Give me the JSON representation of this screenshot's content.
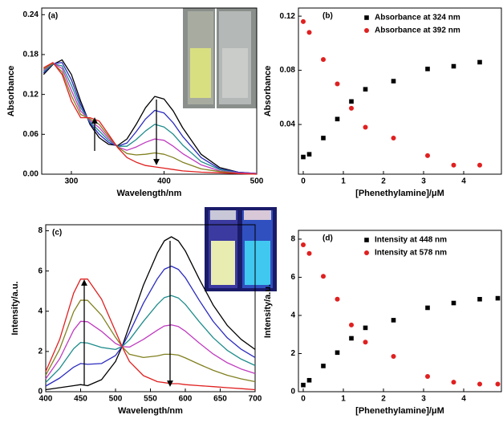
{
  "chart_data": [
    {
      "type": "line",
      "panel_label": "(a)",
      "x_label": "Wavelength/nm",
      "y_label": "Absorbance",
      "xlim": [
        268,
        500
      ],
      "ylim": [
        0,
        0.25
      ],
      "xticks": [
        300,
        400,
        500
      ],
      "yticks": [
        {
          "value": 0,
          "label": "0.00"
        },
        0.06,
        0.12,
        0.18,
        0.24
      ],
      "x": [
        270,
        280,
        290,
        300,
        310,
        320,
        330,
        340,
        350,
        360,
        370,
        380,
        390,
        400,
        410,
        420,
        440,
        460,
        480,
        500
      ],
      "series": [
        {
          "color": "#000000",
          "values": [
            0.15,
            0.165,
            0.172,
            0.15,
            0.11,
            0.075,
            0.055,
            0.045,
            0.043,
            0.053,
            0.075,
            0.1,
            0.117,
            0.113,
            0.095,
            0.07,
            0.03,
            0.01,
            0.003,
            0.001
          ]
        },
        {
          "color": "#2b2bbf",
          "values": [
            0.152,
            0.166,
            0.168,
            0.142,
            0.105,
            0.077,
            0.06,
            0.048,
            0.042,
            0.047,
            0.064,
            0.083,
            0.096,
            0.092,
            0.077,
            0.057,
            0.025,
            0.008,
            0.003,
            0.001
          ]
        },
        {
          "color": "#1f8c8c",
          "values": [
            0.154,
            0.166,
            0.163,
            0.134,
            0.1,
            0.079,
            0.065,
            0.051,
            0.042,
            0.042,
            0.052,
            0.065,
            0.075,
            0.071,
            0.06,
            0.044,
            0.019,
            0.007,
            0.002,
            0.001
          ]
        },
        {
          "color": "#c03cc0",
          "values": [
            0.156,
            0.167,
            0.159,
            0.126,
            0.095,
            0.081,
            0.07,
            0.054,
            0.041,
            0.036,
            0.041,
            0.048,
            0.053,
            0.051,
            0.042,
            0.031,
            0.014,
            0.005,
            0.002,
            0.001
          ]
        },
        {
          "color": "#808020",
          "values": [
            0.158,
            0.167,
            0.154,
            0.118,
            0.09,
            0.083,
            0.075,
            0.057,
            0.041,
            0.031,
            0.029,
            0.03,
            0.032,
            0.03,
            0.025,
            0.018,
            0.008,
            0.004,
            0.001,
            0.0
          ]
        },
        {
          "color": "#e02020",
          "values": [
            0.16,
            0.168,
            0.15,
            0.11,
            0.085,
            0.085,
            0.08,
            0.06,
            0.04,
            0.025,
            0.018,
            0.013,
            0.011,
            0.009,
            0.007,
            0.005,
            0.003,
            0.002,
            0.001,
            0.0
          ]
        }
      ]
    },
    {
      "type": "scatter",
      "panel_label": "(b)",
      "x_label": "[Phenethylamine]/μM",
      "y_label": "Absorbance",
      "xlim": [
        -0.12,
        4.94
      ],
      "ylim": [
        0.0033,
        0.126
      ],
      "xticks": [
        0,
        1,
        2,
        3,
        4
      ],
      "yticks": [
        0.04,
        0.08,
        0.12
      ],
      "legend": "upper right",
      "x": [
        0,
        0.15,
        0.5,
        0.85,
        1.2,
        1.55,
        2.25,
        3.1,
        3.75,
        4.4
      ],
      "series": [
        {
          "name": "Absorbance at 324 nm",
          "color": "#000000",
          "marker": "square",
          "values": [
            0.016,
            0.018,
            0.03,
            0.044,
            0.057,
            0.066,
            0.072,
            0.081,
            0.083,
            0.086
          ]
        },
        {
          "name": "Absorbance at 392 nm",
          "color": "#e02020",
          "marker": "circle",
          "values": [
            0.116,
            0.108,
            0.088,
            0.07,
            0.052,
            0.038,
            0.03,
            0.017,
            0.01,
            0.01
          ]
        }
      ]
    },
    {
      "type": "line",
      "panel_label": "(c)",
      "x_label": "Wavelength/nm",
      "y_label": "Intensity/a.u.",
      "xlim": [
        400,
        700
      ],
      "ylim": [
        0,
        8.3
      ],
      "xticks": [
        400,
        450,
        500,
        550,
        600,
        650,
        700
      ],
      "yticks": [
        0,
        2,
        4,
        6,
        8
      ],
      "x": [
        400,
        420,
        440,
        450,
        460,
        480,
        500,
        510,
        520,
        540,
        560,
        570,
        580,
        590,
        600,
        620,
        640,
        660,
        680,
        700
      ],
      "series": [
        {
          "color": "#000000",
          "values": [
            0.1,
            0.2,
            0.3,
            0.35,
            0.3,
            0.6,
            1.5,
            2.3,
            3.3,
            5.3,
            6.9,
            7.5,
            7.7,
            7.5,
            7.0,
            5.6,
            4.3,
            3.3,
            2.6,
            2.1
          ]
        },
        {
          "color": "#2b2bbf",
          "values": [
            0.28,
            0.68,
            1.22,
            1.4,
            1.36,
            1.4,
            1.8,
            2.28,
            2.94,
            4.4,
            5.62,
            6.09,
            6.24,
            6.08,
            5.67,
            4.54,
            3.49,
            2.68,
            2.11,
            1.7
          ]
        },
        {
          "color": "#1f8c8c",
          "values": [
            0.46,
            1.16,
            2.14,
            2.45,
            2.42,
            2.2,
            2.1,
            2.26,
            2.58,
            3.5,
            4.34,
            4.68,
            4.78,
            4.66,
            4.34,
            3.48,
            2.68,
            2.06,
            1.62,
            1.3
          ]
        },
        {
          "color": "#c03cc0",
          "values": [
            0.64,
            1.64,
            3.06,
            3.5,
            3.48,
            3.0,
            2.4,
            2.24,
            2.22,
            2.6,
            3.06,
            3.27,
            3.32,
            3.24,
            3.01,
            2.42,
            1.87,
            1.44,
            1.13,
            0.9
          ]
        },
        {
          "color": "#808020",
          "values": [
            0.82,
            2.12,
            3.98,
            4.55,
            4.54,
            3.8,
            2.7,
            2.22,
            1.86,
            1.7,
            1.78,
            1.86,
            1.86,
            1.82,
            1.68,
            1.36,
            1.06,
            0.82,
            0.64,
            0.5
          ]
        },
        {
          "color": "#e02020",
          "values": [
            1.0,
            2.6,
            4.9,
            5.6,
            5.6,
            4.6,
            3.0,
            2.2,
            1.5,
            0.8,
            0.5,
            0.45,
            0.4,
            0.4,
            0.35,
            0.3,
            0.25,
            0.2,
            0.15,
            0.1
          ]
        }
      ]
    },
    {
      "type": "scatter",
      "panel_label": "(d)",
      "x_label": "[Phenethylamine]/μM",
      "y_label": "Intensity/a.u.",
      "xlim": [
        -0.12,
        4.94
      ],
      "ylim": [
        0,
        8.46
      ],
      "xticks": [
        0,
        1,
        2,
        3,
        4
      ],
      "yticks": [
        0,
        2,
        4,
        6,
        8
      ],
      "legend": "upper right",
      "x": [
        0,
        0.15,
        0.5,
        0.85,
        1.2,
        1.55,
        2.25,
        3.1,
        3.75,
        4.4,
        4.85
      ],
      "series": [
        {
          "name": "Intensity at 448 nm",
          "color": "#000000",
          "marker": "square",
          "values": [
            0.35,
            0.6,
            1.35,
            2.05,
            2.8,
            3.35,
            3.75,
            4.4,
            4.65,
            4.85,
            4.9
          ]
        },
        {
          "name": "Intensity at 578 nm",
          "color": "#e02020",
          "marker": "circle",
          "values": [
            7.7,
            7.25,
            6.05,
            4.85,
            3.5,
            2.6,
            1.85,
            0.8,
            0.5,
            0.4,
            0.4
          ]
        }
      ]
    }
  ]
}
